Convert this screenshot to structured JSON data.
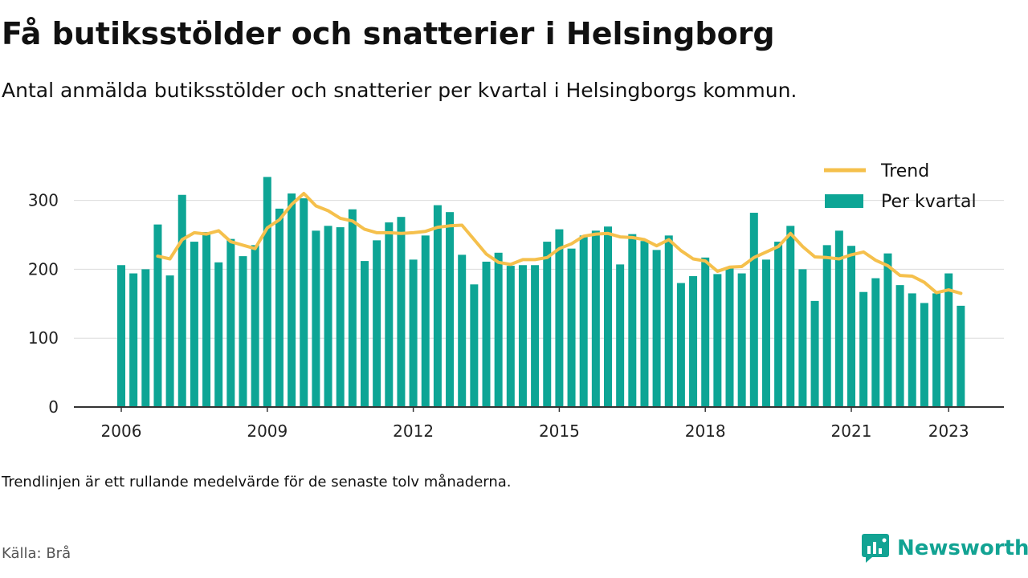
{
  "title": "Få butiksstölder och snatterier i Helsingborg",
  "subtitle": "Antal anmälda butiksstölder och snatterier per kvartal i Helsingborgs kommun.",
  "note": "Trendlinjen är ett rullande medelvärde för de senaste tolv månaderna.",
  "source": "Källa: Brå",
  "brand": "Newsworthy",
  "colors": {
    "bars": "#0da595",
    "trend": "#f5c04c",
    "brand": "#12a393"
  },
  "chart_data": {
    "type": "bar",
    "x_start": "2006 Q1",
    "x_ticks": [
      "2006",
      "2009",
      "2012",
      "2015",
      "2018",
      "2021",
      "2023"
    ],
    "y_ticks": [
      "0",
      "100",
      "200",
      "300"
    ],
    "ylim": [
      0,
      350
    ],
    "grid": true,
    "legend_position": "top-right",
    "series": [
      {
        "name": "Per kvartal",
        "type": "bar",
        "values": [
          206,
          194,
          200,
          265,
          191,
          308,
          240,
          254,
          210,
          244,
          219,
          235,
          334,
          288,
          310,
          303,
          256,
          263,
          261,
          287,
          212,
          242,
          268,
          276,
          214,
          249,
          293,
          283,
          221,
          178,
          211,
          224,
          205,
          206,
          206,
          240,
          258,
          230,
          249,
          256,
          262,
          207,
          251,
          241,
          228,
          249,
          180,
          190,
          217,
          193,
          202,
          194,
          282,
          214,
          240,
          263,
          200,
          154,
          235,
          256,
          234,
          167,
          187,
          223,
          177,
          165,
          151,
          165,
          194,
          147
        ]
      },
      {
        "name": "Trend",
        "type": "line",
        "start_index": 3,
        "values": [
          219,
          215,
          243,
          253,
          251,
          256,
          240,
          235,
          230,
          260,
          272,
          294,
          310,
          292,
          285,
          274,
          270,
          258,
          253,
          253,
          252,
          253,
          255,
          261,
          263,
          264,
          243,
          222,
          210,
          207,
          214,
          214,
          217,
          230,
          237,
          248,
          251,
          252,
          247,
          246,
          243,
          234,
          243,
          227,
          215,
          212,
          197,
          203,
          204,
          217,
          225,
          233,
          252,
          233,
          218,
          217,
          215,
          221,
          225,
          213,
          205,
          191,
          190,
          181,
          166,
          170,
          165
        ]
      }
    ]
  }
}
